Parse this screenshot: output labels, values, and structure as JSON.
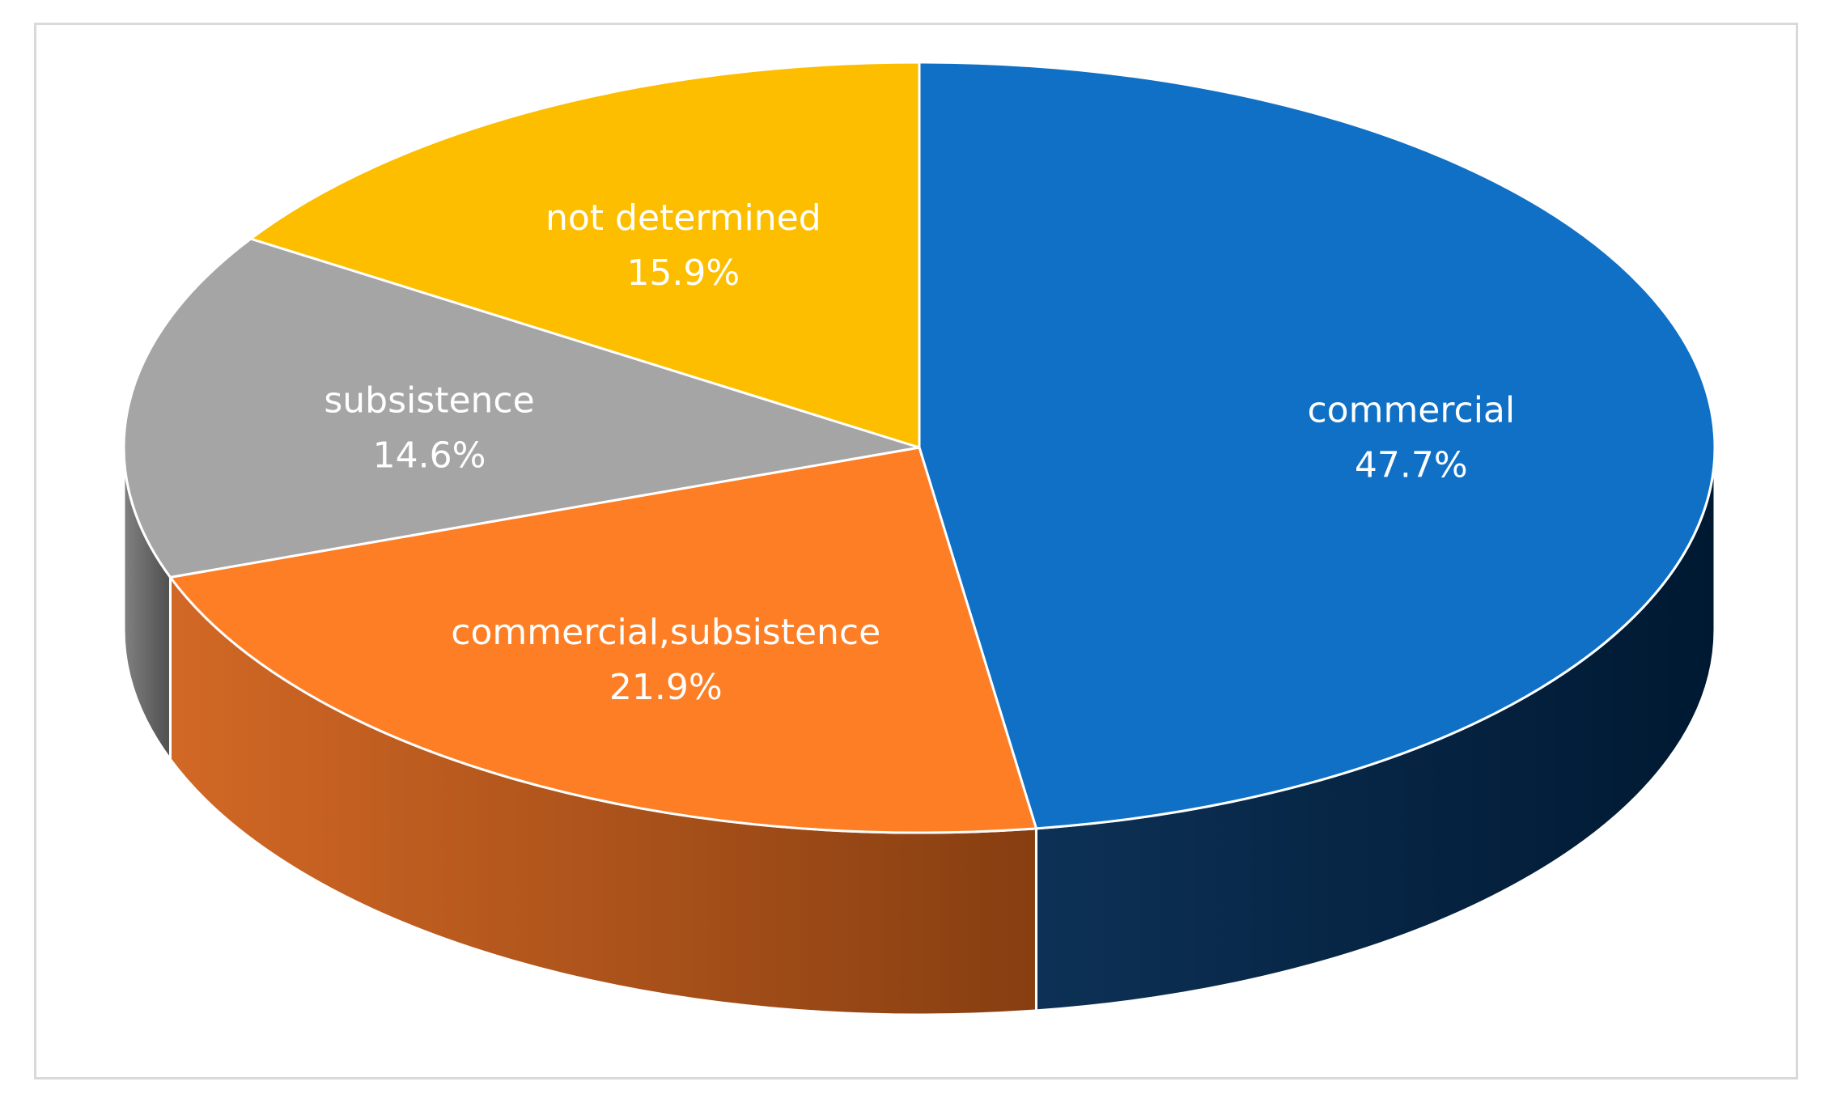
{
  "chart_data": {
    "type": "pie",
    "style": "3d",
    "legend": "none",
    "slices": [
      {
        "label": "commercial",
        "value": 47.7,
        "value_label": "47.7%",
        "color": "#0f70c5",
        "side_color": "#00264d"
      },
      {
        "label": "commercial,subsistence",
        "value": 21.9,
        "value_label": "21.9%",
        "color": "#fd7e25",
        "side_color": "#d0601a"
      },
      {
        "label": "subsistence",
        "value": 14.6,
        "value_label": "14.6%",
        "color": "#a5a5a5",
        "side_color": "#7a7a7a"
      },
      {
        "label": "not determined",
        "value": 15.9,
        "value_label": "15.9%",
        "color": "#fdbe00",
        "side_color": "#c08f00"
      }
    ]
  }
}
